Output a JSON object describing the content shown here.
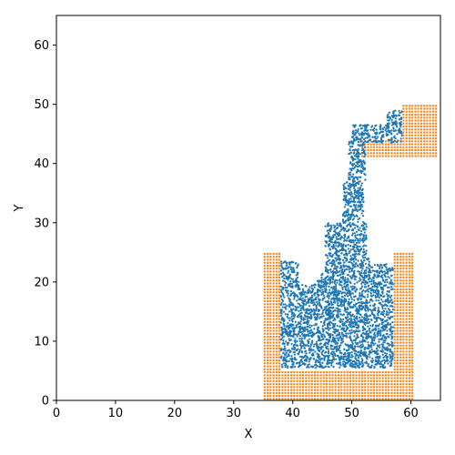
{
  "chart_data": {
    "type": "scatter",
    "title": "",
    "xlabel": "X",
    "ylabel": "Y",
    "xlim": [
      0,
      65
    ],
    "ylim": [
      0,
      65
    ],
    "xticks": [
      0,
      10,
      20,
      30,
      40,
      50,
      60
    ],
    "yticks": [
      0,
      10,
      20,
      30,
      40,
      50,
      60
    ],
    "grid": false,
    "legend": "none",
    "colors": {
      "fluid": "#1f77b4",
      "boundary": "#ff7f0e"
    },
    "fluid_region_description_points": {
      "container_interior": {
        "x": [
          38,
          57
        ],
        "y": [
          6,
          23
        ]
      },
      "column": {
        "x": [
          46,
          52
        ],
        "y": [
          20,
          45
        ]
      },
      "upper_spout": {
        "x": [
          51,
          59
        ],
        "y": [
          44,
          49
        ]
      }
    },
    "boundary_blocks": [
      {
        "name": "left-wall",
        "x": [
          35,
          38
        ],
        "y": [
          0,
          25
        ]
      },
      {
        "name": "right-wall",
        "x": [
          57,
          60.5
        ],
        "y": [
          0,
          25
        ]
      },
      {
        "name": "container-floor",
        "x": [
          38,
          57
        ],
        "y": [
          0,
          5
        ]
      },
      {
        "name": "upper-shelf",
        "x": [
          51.5,
          64.5
        ],
        "y": [
          41,
          44
        ]
      },
      {
        "name": "upper-block",
        "x": [
          58.5,
          64.5
        ],
        "y": [
          44,
          50
        ]
      }
    ]
  }
}
